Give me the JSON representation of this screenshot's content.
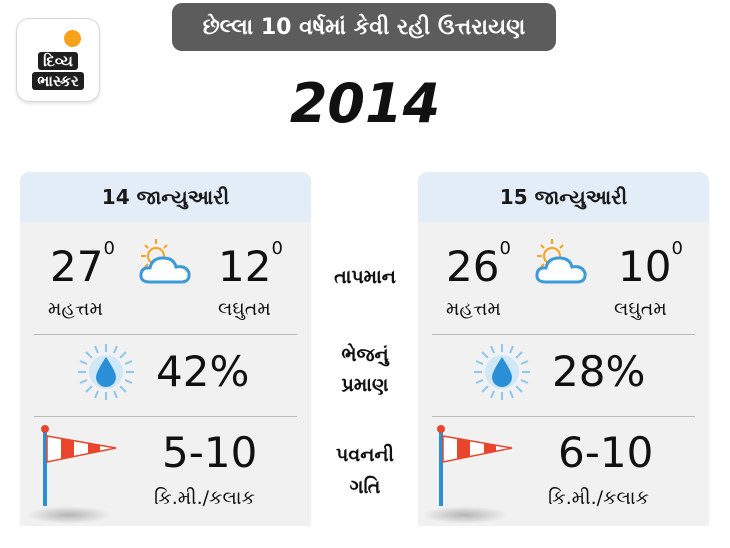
{
  "logo": {
    "line1": "દિવ્ય",
    "line2": "ભાસ્કર"
  },
  "banner": "છેલ્લા 10 વર્ષમાં કેવી રહી ઉત્તરાયણ",
  "year": "2014",
  "labels": {
    "temperature": "તાપમાન",
    "humidity_line1": "ભેજનું",
    "humidity_line2": "પ્રમાણ",
    "wind_line1": "પવનની",
    "wind_line2": "ગતિ"
  },
  "days": [
    {
      "date": "14 જાન્યુઆરી",
      "max": "27",
      "min": "12",
      "deg": "0",
      "max_label": "મહત્તમ",
      "min_label": "લઘુતમ",
      "humidity": "42%",
      "wind": "5-10",
      "wind_unit": "કિ.મી./કલાક"
    },
    {
      "date": "15 જાન્યુઆરી",
      "max": "26",
      "min": "10",
      "deg": "0",
      "max_label": "મહત્તમ",
      "min_label": "લઘુતમ",
      "humidity": "28%",
      "wind": "6-10",
      "wind_unit": "કિ.મી./કલાક"
    }
  ],
  "icons": [
    "partly-cloudy-icon",
    "water-drop-icon",
    "windsock-icon"
  ],
  "colors": {
    "banner": "#5c5c5c",
    "card": "#f1f1f1",
    "card_header": "#e2edf7",
    "drop": "#2a8fd6",
    "sun": "#f7a21b",
    "windsock_red": "#e8452c"
  }
}
